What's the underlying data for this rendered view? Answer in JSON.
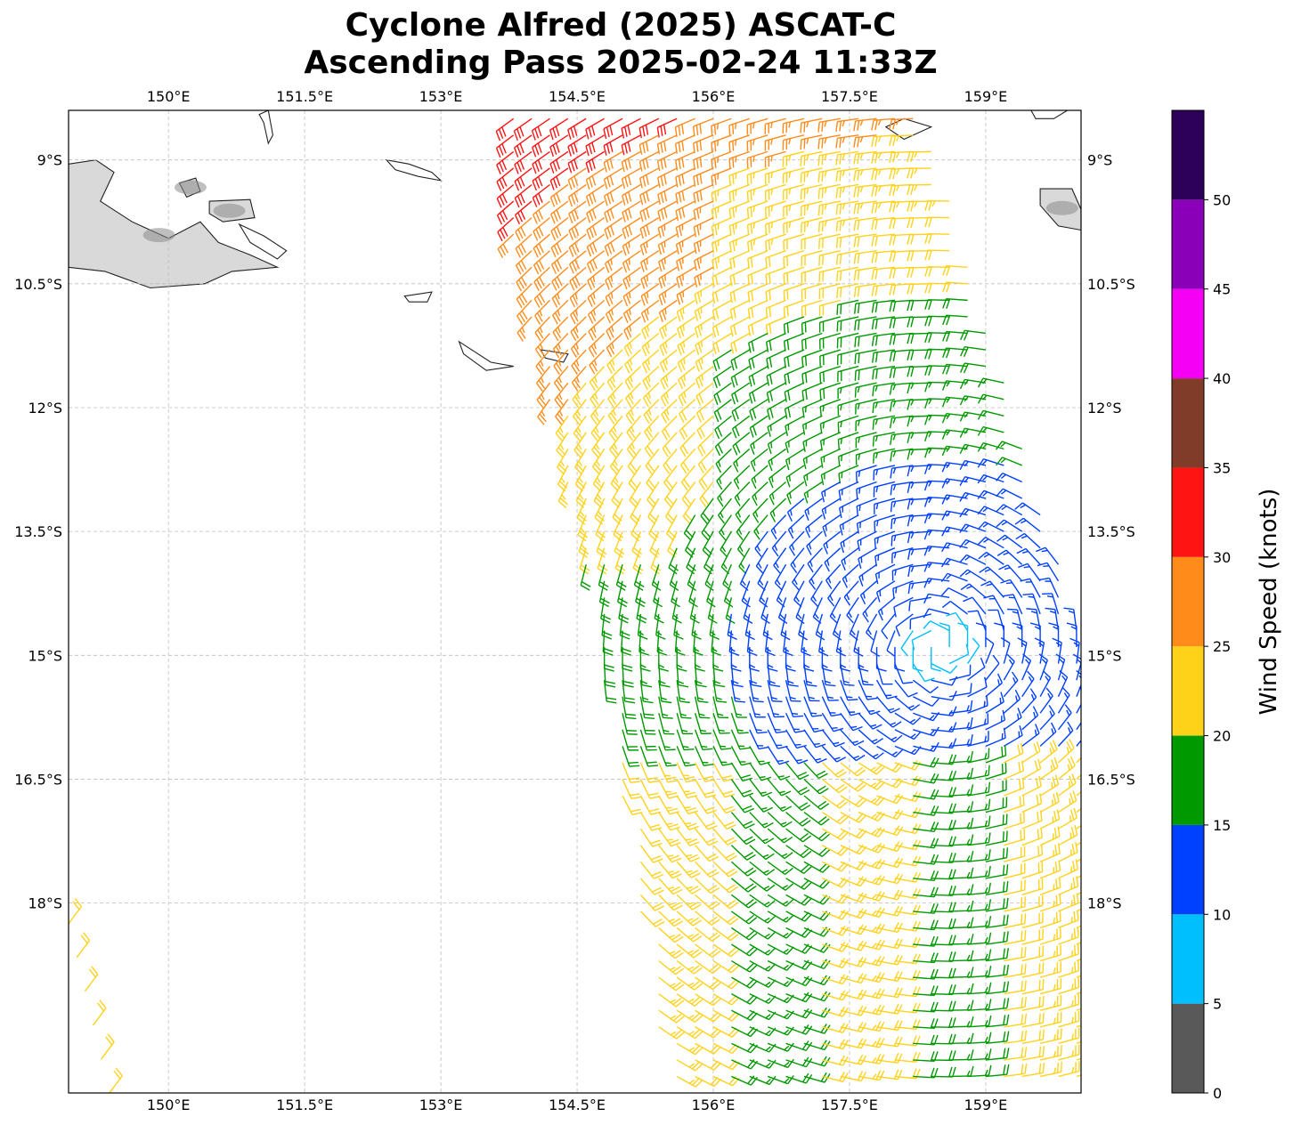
{
  "title": {
    "line1": "Cyclone Alfred (2025) ASCAT-C",
    "line2": "Ascending Pass 2025-02-24 11:33Z"
  },
  "map": {
    "lon_range": [
      148.9,
      160.05
    ],
    "lat_range": [
      -20.3,
      -8.4
    ],
    "lon_ticks": [
      {
        "value": 150.0,
        "label": "150°E"
      },
      {
        "value": 151.5,
        "label": "151.5°E"
      },
      {
        "value": 153.0,
        "label": "153°E"
      },
      {
        "value": 154.5,
        "label": "154.5°E"
      },
      {
        "value": 156.0,
        "label": "156°E"
      },
      {
        "value": 157.5,
        "label": "157.5°E"
      },
      {
        "value": 159.0,
        "label": "159°E"
      }
    ],
    "lat_ticks": [
      {
        "value": -9.0,
        "label": "9°S"
      },
      {
        "value": -10.5,
        "label": "10.5°S"
      },
      {
        "value": -12.0,
        "label": "12°S"
      },
      {
        "value": -13.5,
        "label": "13.5°S"
      },
      {
        "value": -15.0,
        "label": "15°S"
      },
      {
        "value": -16.5,
        "label": "16.5°S"
      },
      {
        "value": -18.0,
        "label": "18°S"
      }
    ],
    "gridlines": true,
    "land_color": "#ffffff",
    "coast_color": "#222222",
    "terrain_shading": "gray"
  },
  "colorbar": {
    "label": "Wind Speed (knots)",
    "ticks": [
      "0",
      "5",
      "10",
      "15",
      "20",
      "25",
      "30",
      "35",
      "40",
      "45",
      "50"
    ],
    "bins": [
      {
        "min": 0,
        "max": 5,
        "color": "#595959"
      },
      {
        "min": 5,
        "max": 10,
        "color": "#00bfff"
      },
      {
        "min": 10,
        "max": 15,
        "color": "#0040ff"
      },
      {
        "min": 15,
        "max": 20,
        "color": "#009900"
      },
      {
        "min": 20,
        "max": 25,
        "color": "#ffd21a"
      },
      {
        "min": 25,
        "max": 30,
        "color": "#ff8c1a"
      },
      {
        "min": 30,
        "max": 35,
        "color": "#ff1414"
      },
      {
        "min": 35,
        "max": 40,
        "color": "#803c28"
      },
      {
        "min": 40,
        "max": 45,
        "color": "#f500f5"
      },
      {
        "min": 45,
        "max": 50,
        "color": "#8a00b8"
      },
      {
        "min": 50,
        "max": 55,
        "color": "#2d005a"
      }
    ]
  },
  "coastlines": [
    {
      "name": "new-guinea",
      "shaded": true,
      "points": [
        [
          148.9,
          -9.05
        ],
        [
          149.2,
          -9.0
        ],
        [
          149.4,
          -9.15
        ],
        [
          149.25,
          -9.5
        ],
        [
          149.6,
          -9.75
        ],
        [
          150.0,
          -9.95
        ],
        [
          150.35,
          -9.75
        ],
        [
          150.55,
          -10.0
        ],
        [
          150.9,
          -10.15
        ],
        [
          151.2,
          -10.3
        ],
        [
          150.7,
          -10.35
        ],
        [
          150.4,
          -10.5
        ],
        [
          149.8,
          -10.55
        ],
        [
          149.3,
          -10.35
        ],
        [
          148.9,
          -10.3
        ]
      ]
    },
    {
      "name": "ferguson-island",
      "shaded": true,
      "points": [
        [
          150.45,
          -9.5
        ],
        [
          150.9,
          -9.48
        ],
        [
          150.95,
          -9.7
        ],
        [
          150.6,
          -9.75
        ],
        [
          150.45,
          -9.65
        ]
      ]
    },
    {
      "name": "goodenough-island",
      "shaded": true,
      "points": [
        [
          150.12,
          -9.28
        ],
        [
          150.3,
          -9.22
        ],
        [
          150.35,
          -9.38
        ],
        [
          150.2,
          -9.45
        ]
      ]
    },
    {
      "name": "normanby-island",
      "shaded": false,
      "points": [
        [
          150.78,
          -9.78
        ],
        [
          151.05,
          -9.92
        ],
        [
          151.3,
          -10.1
        ],
        [
          151.2,
          -10.2
        ],
        [
          150.9,
          -10.0
        ]
      ]
    },
    {
      "name": "woodlark-island",
      "shaded": false,
      "points": [
        [
          152.4,
          -9.0
        ],
        [
          152.65,
          -9.05
        ],
        [
          152.9,
          -9.15
        ],
        [
          153.0,
          -9.25
        ],
        [
          152.75,
          -9.2
        ],
        [
          152.5,
          -9.12
        ]
      ]
    },
    {
      "name": "trobriand-islands",
      "shaded": false,
      "points": [
        [
          151.0,
          -8.45
        ],
        [
          151.1,
          -8.4
        ],
        [
          151.15,
          -8.7
        ],
        [
          151.1,
          -8.8
        ],
        [
          151.05,
          -8.55
        ]
      ]
    },
    {
      "name": "rossel-island",
      "shaded": false,
      "points": [
        [
          154.1,
          -11.3
        ],
        [
          154.4,
          -11.35
        ],
        [
          154.35,
          -11.45
        ],
        [
          154.15,
          -11.4
        ]
      ]
    },
    {
      "name": "sudest-island",
      "shaded": false,
      "points": [
        [
          153.2,
          -11.2
        ],
        [
          153.55,
          -11.45
        ],
        [
          153.8,
          -11.5
        ],
        [
          153.5,
          -11.55
        ],
        [
          153.25,
          -11.35
        ]
      ]
    },
    {
      "name": "misima-island",
      "shaded": false,
      "points": [
        [
          152.6,
          -10.65
        ],
        [
          152.9,
          -10.6
        ],
        [
          152.85,
          -10.72
        ],
        [
          152.65,
          -10.72
        ]
      ]
    },
    {
      "name": "bougainville-south",
      "shaded": true,
      "points": [
        [
          159.6,
          -9.35
        ],
        [
          159.95,
          -9.35
        ],
        [
          160.05,
          -9.6
        ],
        [
          160.05,
          -9.85
        ],
        [
          159.8,
          -9.8
        ],
        [
          159.6,
          -9.55
        ]
      ]
    },
    {
      "name": "new-georgia",
      "shaded": false,
      "points": [
        [
          158.1,
          -8.5
        ],
        [
          158.4,
          -8.6
        ],
        [
          158.1,
          -8.75
        ],
        [
          157.9,
          -8.6
        ]
      ]
    },
    {
      "name": "guadalcanal-north",
      "shaded": false,
      "points": [
        [
          159.5,
          -8.4
        ],
        [
          159.9,
          -8.4
        ],
        [
          159.75,
          -8.5
        ],
        [
          159.55,
          -8.5
        ]
      ]
    }
  ],
  "wind_field": {
    "swath_corners": [
      [
        153.8,
        -8.4
      ],
      [
        158.3,
        -8.4
      ],
      [
        160.05,
        -14.8
      ],
      [
        160.05,
        -20.3
      ],
      [
        155.5,
        -20.3
      ],
      [
        154.6,
        -14.0
      ],
      [
        153.6,
        -9.0
      ]
    ],
    "secondary_swath": [
      [
        148.9,
        -18.25
      ],
      [
        149.35,
        -20.3
      ]
    ],
    "cyclone_center": [
      158.5,
      -14.9
    ],
    "station_spacing_deg": 0.2,
    "barbs_note": "Wind barbs colored by speed bin: blue 10-15 kt near center, green 15-20 kt, yellow 20-25 kt, orange 25-30 kt and red 30-35 kt on western flank."
  }
}
